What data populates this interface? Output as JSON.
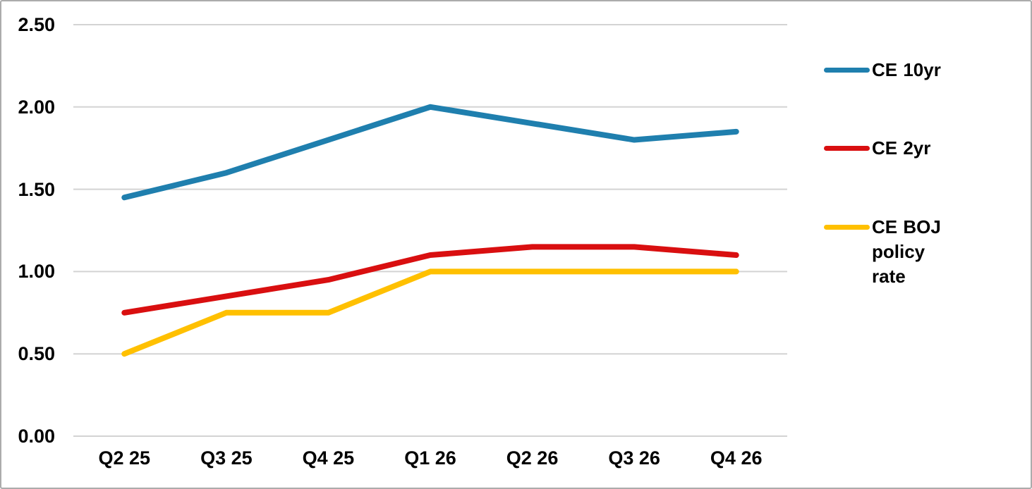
{
  "chart_data": {
    "type": "line",
    "title": "",
    "xlabel": "",
    "ylabel": "",
    "categories": [
      "Q2 25",
      "Q3 25",
      "Q4 25",
      "Q1 26",
      "Q2 26",
      "Q3 26",
      "Q4 26"
    ],
    "series": [
      {
        "name": "CE 10yr",
        "color": "#1f7fae",
        "values": [
          1.45,
          1.6,
          1.8,
          2.0,
          1.9,
          1.8,
          1.85
        ]
      },
      {
        "name": "CE 2yr",
        "color": "#d90f10",
        "values": [
          0.75,
          0.85,
          0.95,
          1.1,
          1.15,
          1.15,
          1.1
        ]
      },
      {
        "name": "CE BOJ policy rate",
        "color": "#ffc000",
        "values": [
          0.5,
          0.75,
          0.75,
          1.0,
          1.0,
          1.0,
          1.0
        ]
      }
    ],
    "ylim": [
      0.0,
      2.5
    ],
    "ytick_step": 0.5,
    "yticks": [
      "2.50",
      "2.00",
      "1.50",
      "1.00",
      "0.50",
      "0.00"
    ],
    "grid": "horizontal-only",
    "gridline_color": "#d3d3d3",
    "legend_position": "right",
    "text_color": "#000000",
    "background_color": "#ffffff",
    "border_color": "#ababab"
  }
}
